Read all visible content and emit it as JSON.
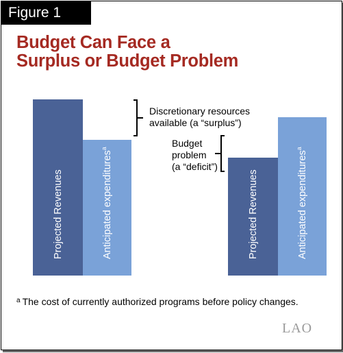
{
  "figure": {
    "label": "Figure 1",
    "title_lines": [
      "Budget Can Face a",
      "Surplus or Budget Problem"
    ]
  },
  "chart_data": {
    "type": "bar",
    "scenarios": [
      {
        "name": "surplus",
        "bars": [
          {
            "label": "Projected Revenues",
            "footnote_mark": "",
            "value": 100,
            "color": "#4a6296"
          },
          {
            "label": "Anticipated expenditures",
            "footnote_mark": "a",
            "value": 77,
            "color": "#7aa2d8"
          }
        ],
        "annotation": {
          "lines": [
            "Discretionary resources",
            "available (a “surplus”)"
          ]
        }
      },
      {
        "name": "deficit",
        "bars": [
          {
            "label": "Projected Revenues",
            "footnote_mark": "",
            "value": 67,
            "color": "#4a6296"
          },
          {
            "label": "Anticipated expenditures",
            "footnote_mark": "a",
            "value": 90,
            "color": "#7aa2d8"
          }
        ],
        "annotation": {
          "lines": [
            "Budget",
            "problem",
            "(a “deficit”)"
          ]
        }
      }
    ]
  },
  "footnote": {
    "mark": "a",
    "text": "The cost of currently authorized programs before policy changes."
  },
  "logo": {
    "text": "LAO"
  }
}
